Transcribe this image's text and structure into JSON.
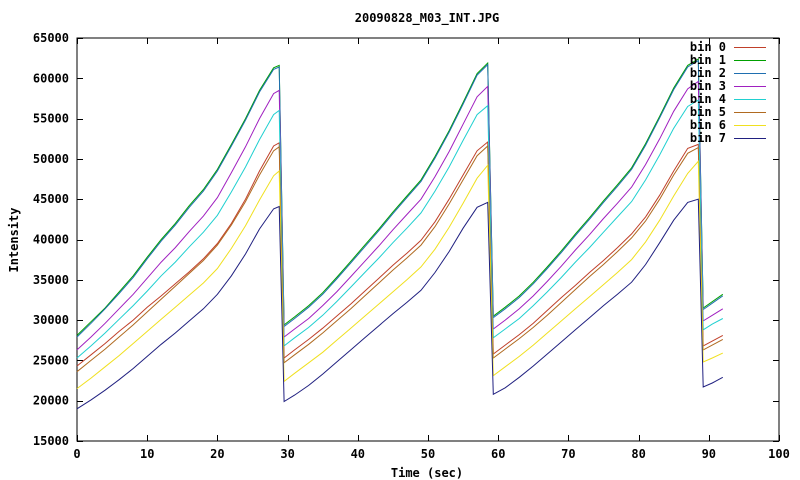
{
  "chart_data": {
    "type": "line",
    "title": "20090828_M03_INT.JPG",
    "xlabel": "Time (sec)",
    "ylabel": "Intensity",
    "xlim": [
      0,
      100
    ],
    "ylim": [
      15000,
      65000
    ],
    "xticks": [
      0,
      10,
      20,
      30,
      40,
      50,
      60,
      70,
      80,
      90,
      100
    ],
    "yticks": [
      15000,
      20000,
      25000,
      30000,
      35000,
      40000,
      45000,
      50000,
      55000,
      60000,
      65000
    ],
    "grid": false,
    "legend_position": "top-right",
    "x": [
      0,
      2,
      4,
      6,
      8,
      10,
      12,
      14,
      16,
      18,
      20,
      22,
      24,
      26,
      28,
      28.8,
      29.5,
      31,
      33,
      35,
      37,
      39,
      41,
      43,
      45,
      47,
      49,
      51,
      53,
      55,
      57,
      58.5,
      59.3,
      61,
      63,
      65,
      67,
      69,
      71,
      73,
      75,
      77,
      79,
      81,
      83,
      85,
      87,
      88.5,
      89.2,
      90.5,
      92
    ],
    "series": [
      {
        "name": "bin 0",
        "color": "#c0402a",
        "values": [
          24300,
          25700,
          27100,
          28600,
          30000,
          31600,
          33000,
          34500,
          36000,
          37600,
          39500,
          42000,
          45000,
          48500,
          51600,
          52000,
          25300,
          26300,
          27600,
          29000,
          30500,
          32000,
          33600,
          35200,
          36800,
          38300,
          39900,
          42200,
          45000,
          48000,
          51000,
          52100,
          25800,
          26900,
          28200,
          29600,
          31200,
          32800,
          34300,
          35900,
          37400,
          39000,
          40700,
          42800,
          45500,
          48500,
          51300,
          51800,
          26800,
          27400,
          28100
        ]
      },
      {
        "name": "bin 1",
        "color": "#00a000",
        "values": [
          28100,
          29800,
          31500,
          33500,
          35500,
          37800,
          40000,
          42000,
          44200,
          46200,
          48700,
          51800,
          55000,
          58500,
          61300,
          61600,
          29400,
          30400,
          31800,
          33400,
          35300,
          37300,
          39300,
          41300,
          43400,
          45400,
          47400,
          50300,
          53500,
          57000,
          60600,
          61900,
          30500,
          31600,
          33000,
          34700,
          36600,
          38600,
          40700,
          42700,
          44800,
          46800,
          48900,
          51900,
          55300,
          58800,
          61600,
          62400,
          31500,
          32300,
          33200
        ]
      },
      {
        "name": "bin 2",
        "color": "#1f6fb0",
        "values": [
          27900,
          29600,
          31400,
          33300,
          35300,
          37600,
          39800,
          41800,
          44000,
          46000,
          48500,
          51600,
          54800,
          58300,
          61100,
          61400,
          29200,
          30200,
          31600,
          33200,
          35100,
          37100,
          39100,
          41100,
          43200,
          45200,
          47200,
          50100,
          53300,
          56800,
          60400,
          61700,
          30300,
          31400,
          32800,
          34500,
          36400,
          38400,
          40500,
          42500,
          44600,
          46600,
          48700,
          51700,
          55100,
          58600,
          61400,
          62200,
          31300,
          32100,
          33000
        ]
      },
      {
        "name": "bin 3",
        "color": "#a020c0",
        "values": [
          26300,
          27900,
          29600,
          31400,
          33200,
          35200,
          37200,
          39000,
          41000,
          42900,
          45200,
          48300,
          51500,
          55000,
          58100,
          58500,
          27900,
          28900,
          30200,
          31800,
          33500,
          35400,
          37300,
          39200,
          41200,
          43100,
          45000,
          47800,
          50900,
          54300,
          57700,
          59000,
          28900,
          30000,
          31400,
          33000,
          34800,
          36700,
          38700,
          40600,
          42600,
          44500,
          46500,
          49300,
          52500,
          55900,
          58700,
          59600,
          29900,
          30600,
          31400
        ]
      },
      {
        "name": "bin 4",
        "color": "#20d0d0",
        "values": [
          25300,
          26800,
          28400,
          30100,
          31800,
          33600,
          35500,
          37200,
          39100,
          40900,
          43000,
          45900,
          49000,
          52400,
          55500,
          56000,
          26800,
          27800,
          29100,
          30600,
          32300,
          34100,
          35900,
          37700,
          39600,
          41400,
          43300,
          46000,
          49000,
          52300,
          55500,
          56600,
          27800,
          28900,
          30200,
          31800,
          33500,
          35300,
          37200,
          39000,
          40900,
          42800,
          44700,
          47400,
          50500,
          53800,
          56500,
          57300,
          28800,
          29500,
          30200
        ]
      },
      {
        "name": "bin 5",
        "color": "#b06a20",
        "values": [
          23600,
          25000,
          26400,
          27900,
          29400,
          31000,
          32600,
          34200,
          35800,
          37400,
          39300,
          41800,
          44700,
          48000,
          51000,
          51500,
          24700,
          25700,
          27000,
          28400,
          29900,
          31400,
          33000,
          34600,
          36200,
          37700,
          39300,
          41600,
          44400,
          47400,
          50400,
          51600,
          25300,
          26400,
          27700,
          29100,
          30600,
          32200,
          33800,
          35400,
          36900,
          38500,
          40200,
          42300,
          45000,
          48000,
          50700,
          51400,
          26300,
          26900,
          27600
        ]
      },
      {
        "name": "bin 6",
        "color": "#f0e020",
        "values": [
          21500,
          22800,
          24200,
          25600,
          27100,
          28600,
          30100,
          31600,
          33100,
          34600,
          36400,
          38900,
          41700,
          44900,
          47900,
          48500,
          22400,
          23400,
          24700,
          26000,
          27500,
          29000,
          30500,
          32000,
          33500,
          35000,
          36600,
          38800,
          41500,
          44500,
          47600,
          49200,
          23100,
          24200,
          25500,
          26900,
          28400,
          29900,
          31400,
          32900,
          34400,
          35900,
          37500,
          39700,
          42400,
          45400,
          48200,
          49700,
          24800,
          25300,
          25900
        ]
      },
      {
        "name": "bin 7",
        "color": "#202080",
        "values": [
          19000,
          20100,
          21300,
          22600,
          24000,
          25500,
          27000,
          28400,
          29900,
          31400,
          33200,
          35500,
          38200,
          41300,
          43800,
          44100,
          19900,
          20700,
          21900,
          23300,
          24800,
          26300,
          27800,
          29300,
          30800,
          32200,
          33700,
          35900,
          38500,
          41400,
          44000,
          44600,
          20800,
          21600,
          22900,
          24300,
          25800,
          27300,
          28800,
          30300,
          31800,
          33200,
          34700,
          36900,
          39600,
          42400,
          44600,
          45000,
          21700,
          22200,
          22900
        ]
      }
    ]
  }
}
